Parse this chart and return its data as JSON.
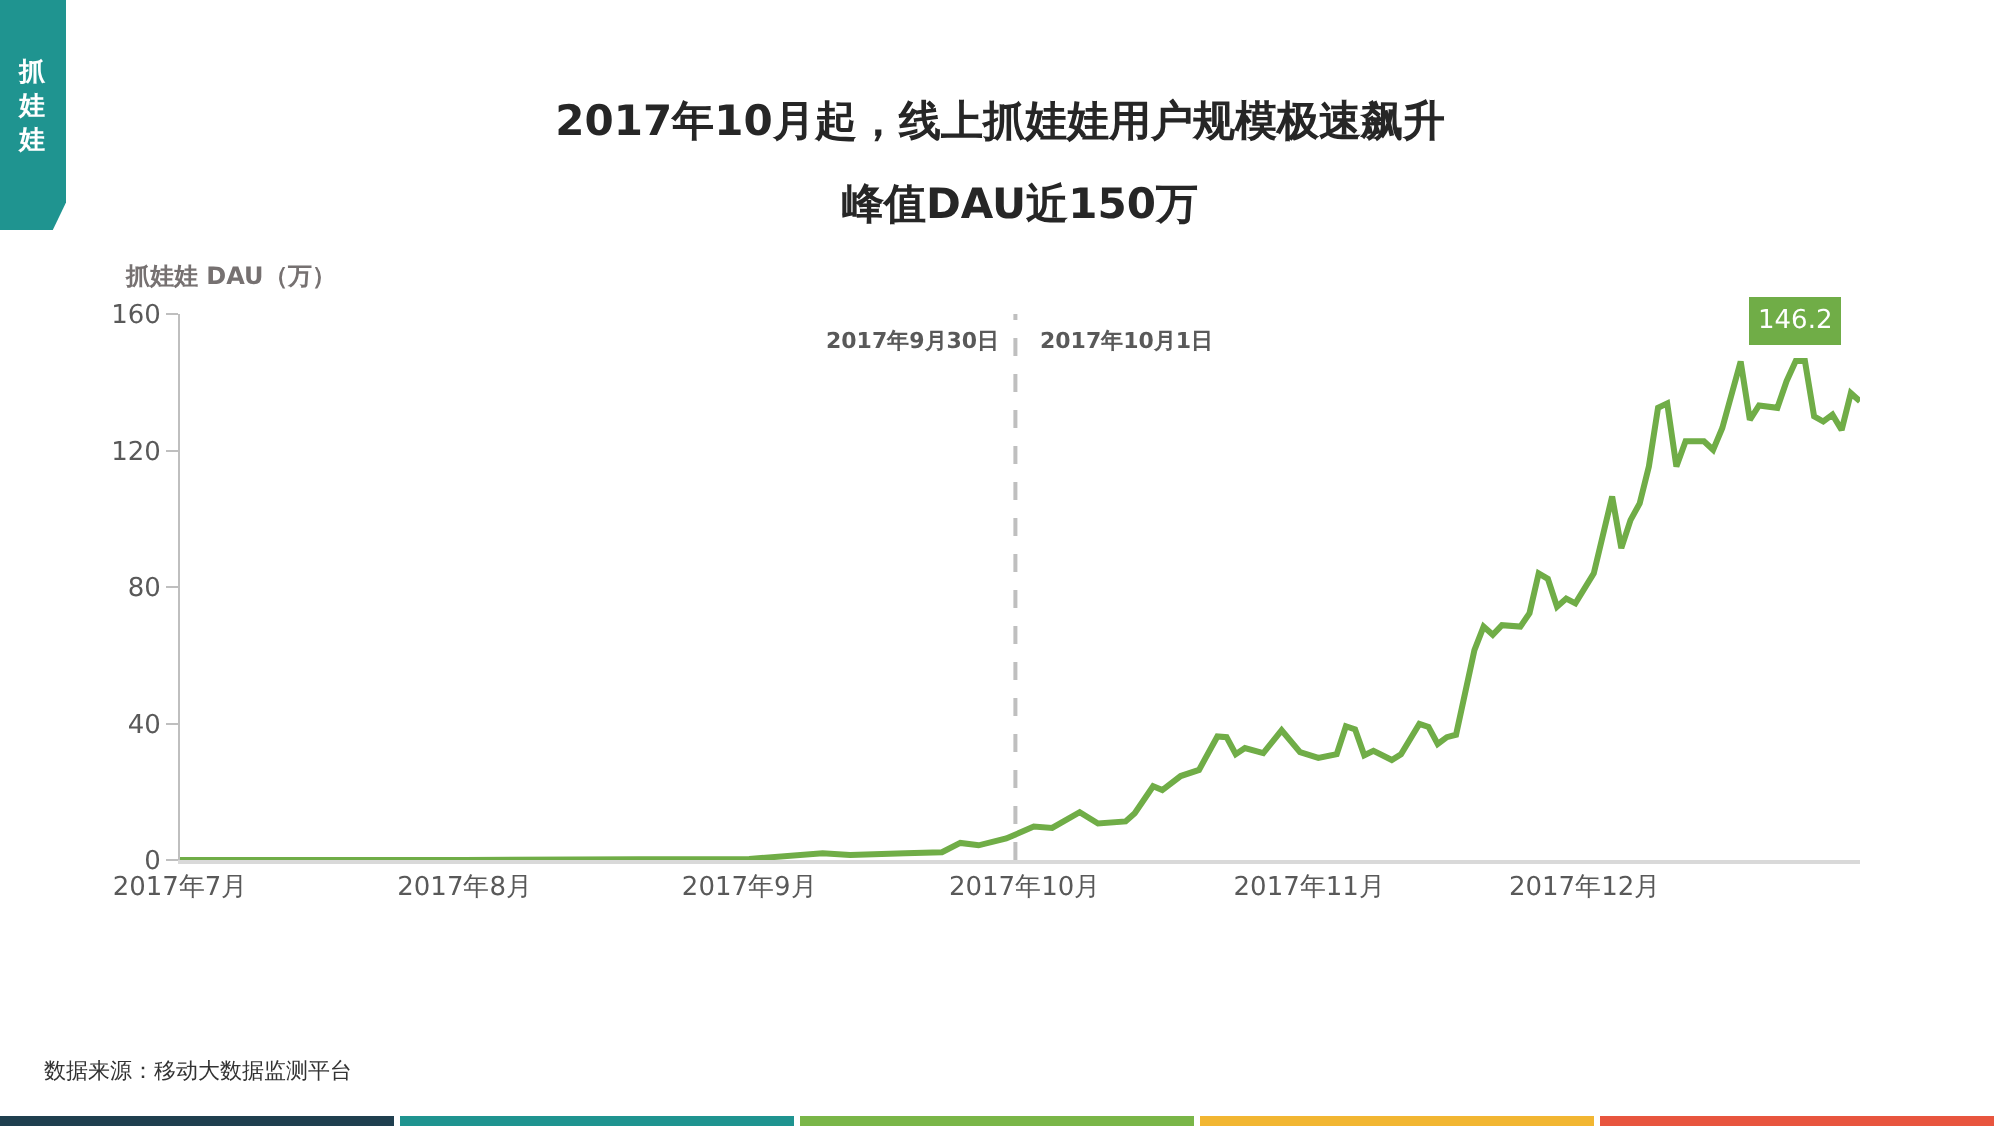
{
  "chart_data": {
    "type": "line",
    "title": "2017年10月起，线上抓娃娃用户规模极速飙升",
    "subtitle": "峰值DAU近150万",
    "ylabel": "抓娃娃 DAU（万）",
    "annotations": [
      "抓娃娃",
      "数据来源：移动大数据监测平台",
      {
        "text": "2017年10月1日",
        "x": "2017-10-01",
        "y": 152
      }
    ],
    "x": [
      "2017-07-01",
      "2017-08-01",
      "2017-08-20",
      "2017-09-01",
      "2017-09-09",
      "2017-09-12",
      "2017-09-18",
      "2017-09-22",
      "2017-09-24",
      "2017-09-26",
      "2017-09-29",
      "2017-10-02",
      "2017-10-04",
      "2017-10-07",
      "2017-10-09",
      "2017-10-12",
      "2017-10-13",
      "2017-10-15",
      "2017-10-16",
      "2017-10-18",
      "2017-10-20",
      "2017-10-22",
      "2017-10-23",
      "2017-10-24",
      "2017-10-25",
      "2017-10-27",
      "2017-10-29",
      "2017-10-31",
      "2017-11-02",
      "2017-11-04",
      "2017-11-05",
      "2017-11-06",
      "2017-11-07",
      "2017-11-08",
      "2017-11-10",
      "2017-11-11",
      "2017-11-13",
      "2017-11-14",
      "2017-11-15",
      "2017-11-16",
      "2017-11-17",
      "2017-11-19",
      "2017-11-20",
      "2017-11-21",
      "2017-11-22",
      "2017-11-24",
      "2017-11-25",
      "2017-11-26",
      "2017-11-27",
      "2017-11-28",
      "2017-11-29",
      "2017-11-30",
      "2017-12-02",
      "2017-12-04",
      "2017-12-05",
      "2017-12-06",
      "2017-12-07",
      "2017-12-08",
      "2017-12-09",
      "2017-12-10",
      "2017-12-11",
      "2017-12-12",
      "2017-12-14",
      "2017-12-15",
      "2017-12-16",
      "2017-12-18",
      "2017-12-19",
      "2017-12-20",
      "2017-12-22",
      "2017-12-23",
      "2017-12-24",
      "2017-12-25",
      "2017-12-26",
      "2017-12-27",
      "2017-12-28",
      "2017-12-29",
      "2017-12-30",
      "2017-12-31"
    ],
    "series": [
      {
        "color": "#70ad47",
        "values": [
          0,
          0,
          0.2,
          0.3,
          2,
          1.5,
          2,
          2.3,
          5,
          4.3,
          6.3,
          9.8,
          9.4,
          14,
          10.7,
          11.3,
          13.7,
          21.6,
          20.5,
          24.6,
          26.4,
          36.2,
          36,
          31,
          32.8,
          31.3,
          38,
          31.6,
          29.9,
          31,
          39.2,
          38.3,
          30.7,
          32,
          29.3,
          31,
          39.9,
          39,
          34,
          36,
          36.7,
          61.5,
          68.4,
          66,
          68.8,
          68.4,
          72.3,
          84,
          82.4,
          74.2,
          76.6,
          75.2,
          84,
          106.5,
          91.4,
          99.6,
          104.5,
          115.3,
          132.5,
          133.8,
          115.3,
          122.7,
          122.7,
          120.2,
          126.6,
          146.1,
          129,
          133.2,
          132.5,
          140.3,
          146.2,
          146.2,
          130,
          128.5,
          130.5,
          126,
          136.8,
          134.4
        ],
        "value_labels": [
          null,
          null,
          null,
          null,
          null,
          null,
          null,
          null,
          null,
          null,
          null,
          null,
          null,
          null,
          null,
          null,
          null,
          null,
          null,
          null,
          null,
          null,
          null,
          null,
          null,
          null,
          null,
          null,
          null,
          null,
          null,
          null,
          null,
          null,
          null,
          null,
          null,
          null,
          null,
          null,
          null,
          null,
          null,
          null,
          null,
          null,
          null,
          null,
          null,
          null,
          null,
          null,
          null,
          null,
          null,
          null,
          null,
          null,
          null,
          null,
          null,
          null,
          null,
          null,
          null,
          null,
          null,
          null,
          null,
          null,
          "146.2",
          null,
          null,
          null,
          null,
          null,
          null,
          null
        ]
      }
    ],
    "xlim": [
      "2017-07-01",
      "2017-12-31"
    ],
    "xticks": [
      {
        "value": "2017-07-01",
        "label": "2017年7月"
      },
      {
        "value": "2017-08-01",
        "label": "2017年8月"
      },
      {
        "value": "2017-09-01",
        "label": "2017年9月"
      },
      {
        "value": "2017-10-01",
        "label": "2017年10月"
      },
      {
        "value": "2017-11-01",
        "label": "2017年11月"
      },
      {
        "value": "2017-12-01",
        "label": "2017年12月"
      }
    ],
    "ylim": [
      0,
      160
    ],
    "yticks": [
      0,
      40,
      80,
      120,
      160
    ],
    "marker": "none",
    "line_style": "solid",
    "ref_lines": [
      {
        "axis": "x",
        "value": "2017-09-30",
        "label": "2017年9月30日",
        "color": "#bfbfbf",
        "line_style": "dashed"
      }
    ]
  }
}
